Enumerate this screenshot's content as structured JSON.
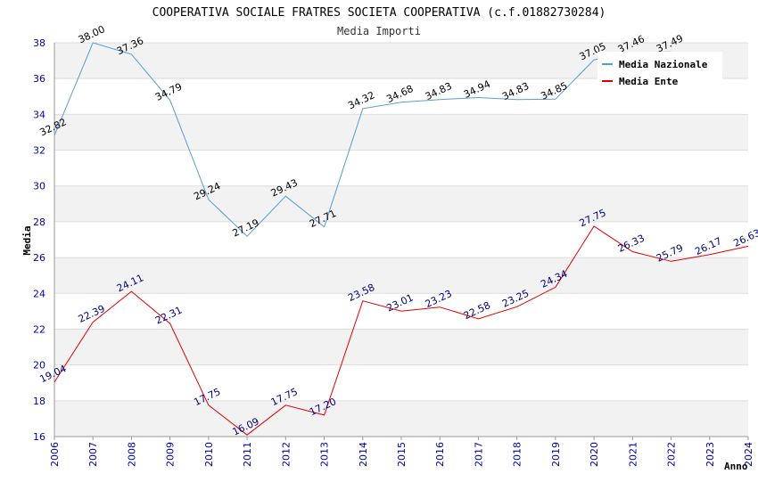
{
  "chart_data": {
    "type": "line",
    "title": "COOPERATIVA SOCIALE FRATRES SOCIETA COOPERATIVA (c.f.01882730284)",
    "subtitle": "Media Importi",
    "xlabel": "Anno",
    "ylabel": "Media",
    "ylim": [
      16,
      38
    ],
    "yticks": [
      16,
      18,
      20,
      22,
      24,
      26,
      28,
      30,
      32,
      34,
      36,
      38
    ],
    "x": [
      "2006",
      "2007",
      "2008",
      "2009",
      "2010",
      "2011",
      "2012",
      "2013",
      "2014",
      "2015",
      "2016",
      "2017",
      "2018",
      "2019",
      "2020",
      "2021",
      "2022",
      "2023",
      "2024"
    ],
    "grid": true,
    "legend_position": "top-right",
    "series": [
      {
        "name": "Media Nazionale",
        "color": "#5b9bd5",
        "values": [
          32.82,
          38.0,
          37.36,
          34.79,
          29.24,
          27.19,
          29.43,
          27.71,
          34.32,
          34.68,
          34.83,
          34.94,
          34.83,
          34.85,
          37.05,
          37.46,
          37.49,
          null,
          null
        ],
        "labels": [
          "32.82",
          "38.00",
          "37.36",
          "34.79",
          "29.24",
          "27.19",
          "29.43",
          "27.71",
          "34.32",
          "34.68",
          "34.83",
          "34.94",
          "34.83",
          "34.85",
          "37.05",
          "37.46",
          "37.49",
          "",
          ""
        ]
      },
      {
        "name": "Media Ente",
        "color": "#e00000",
        "values": [
          19.04,
          22.39,
          24.11,
          22.31,
          17.75,
          16.09,
          17.75,
          17.2,
          23.58,
          23.01,
          23.23,
          22.58,
          23.25,
          24.34,
          27.75,
          26.33,
          25.79,
          26.17,
          26.63
        ],
        "labels": [
          "19.04",
          "22.39",
          "24.11",
          "22.31",
          "17.75",
          "16.09",
          "17.75",
          "17.20",
          "23.58",
          "23.01",
          "23.23",
          "22.58",
          "23.25",
          "24.34",
          "27.75",
          "26.33",
          "25.79",
          "26.17",
          "26.63"
        ]
      }
    ]
  }
}
